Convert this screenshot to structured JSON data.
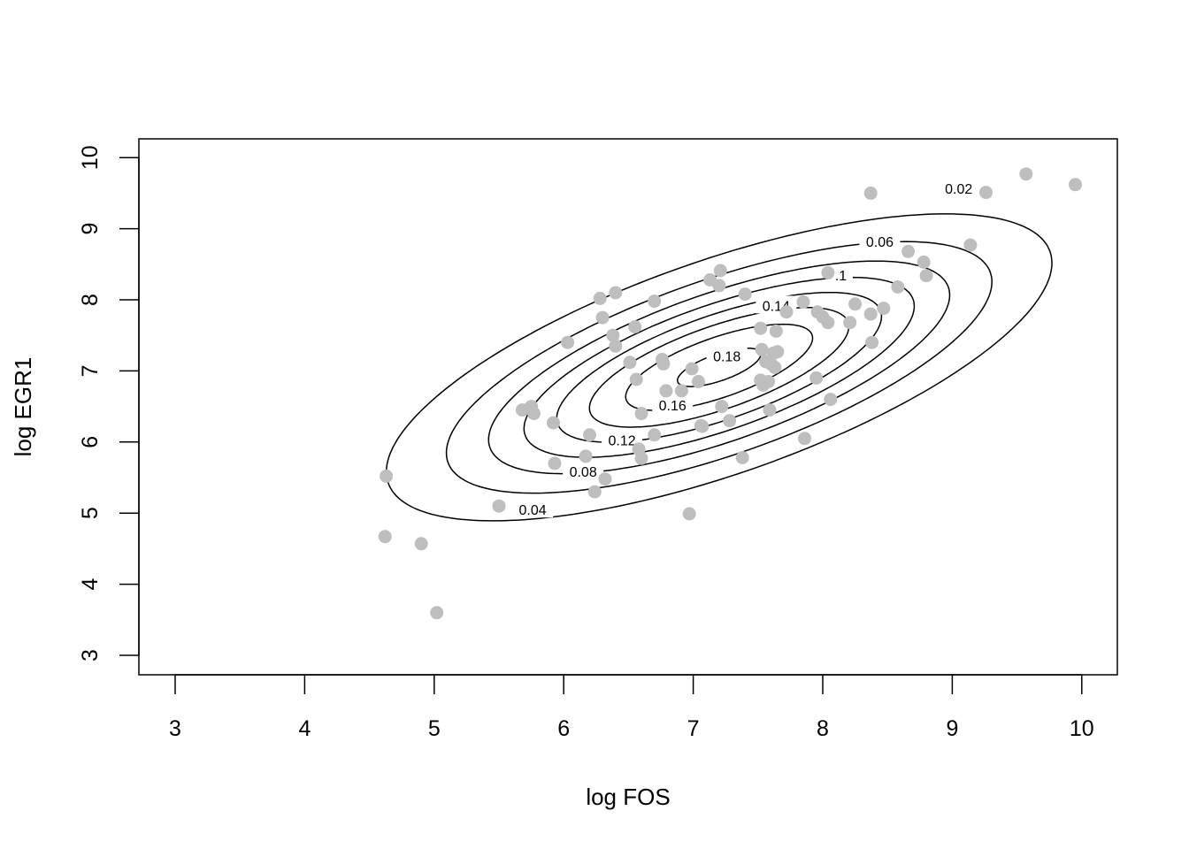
{
  "chart_data": {
    "type": "scatter",
    "title": "",
    "xlabel": "log FOS",
    "ylabel": "log EGR1",
    "xlim": [
      3,
      10
    ],
    "ylim": [
      3,
      10
    ],
    "x_ticks": [
      3,
      4,
      5,
      6,
      7,
      8,
      9,
      10
    ],
    "y_ticks": [
      3,
      4,
      5,
      6,
      7,
      8,
      9,
      10
    ],
    "grid": false,
    "point_color": "#bebebe",
    "contour_color": "#000000",
    "points": [
      [
        4.63,
        5.52
      ],
      [
        4.62,
        4.67
      ],
      [
        4.9,
        4.57
      ],
      [
        5.02,
        3.6
      ],
      [
        5.5,
        5.1
      ],
      [
        5.68,
        6.45
      ],
      [
        5.75,
        6.5
      ],
      [
        5.77,
        6.4
      ],
      [
        5.92,
        6.27
      ],
      [
        5.93,
        5.7
      ],
      [
        6.03,
        7.4
      ],
      [
        6.17,
        5.8
      ],
      [
        6.2,
        6.1
      ],
      [
        6.24,
        5.3
      ],
      [
        6.28,
        8.02
      ],
      [
        6.3,
        7.75
      ],
      [
        6.32,
        5.48
      ],
      [
        6.38,
        7.5
      ],
      [
        6.4,
        8.1
      ],
      [
        6.4,
        7.35
      ],
      [
        6.51,
        7.12
      ],
      [
        6.55,
        7.62
      ],
      [
        6.56,
        6.88
      ],
      [
        6.58,
        5.9
      ],
      [
        6.6,
        5.77
      ],
      [
        6.6,
        6.4
      ],
      [
        6.7,
        7.98
      ],
      [
        6.7,
        6.1
      ],
      [
        6.76,
        7.16
      ],
      [
        6.77,
        7.1
      ],
      [
        6.79,
        6.72
      ],
      [
        6.91,
        6.72
      ],
      [
        6.97,
        4.99
      ],
      [
        6.99,
        7.03
      ],
      [
        7.04,
        6.85
      ],
      [
        7.06,
        6.23
      ],
      [
        7.07,
        6.22
      ],
      [
        7.13,
        8.28
      ],
      [
        7.2,
        8.2
      ],
      [
        7.21,
        8.41
      ],
      [
        7.22,
        6.5
      ],
      [
        7.28,
        6.3
      ],
      [
        7.38,
        5.78
      ],
      [
        7.4,
        8.08
      ],
      [
        7.52,
        7.6
      ],
      [
        7.52,
        6.87
      ],
      [
        7.53,
        7.3
      ],
      [
        7.54,
        6.8
      ],
      [
        7.56,
        7.13
      ],
      [
        7.58,
        6.85
      ],
      [
        7.59,
        6.45
      ],
      [
        7.6,
        7.1
      ],
      [
        7.62,
        7.25
      ],
      [
        7.63,
        7.05
      ],
      [
        7.64,
        7.56
      ],
      [
        7.65,
        7.27
      ],
      [
        7.72,
        7.83
      ],
      [
        7.85,
        7.97
      ],
      [
        7.86,
        6.05
      ],
      [
        7.95,
        6.9
      ],
      [
        7.96,
        7.83
      ],
      [
        8.0,
        7.76
      ],
      [
        8.04,
        7.68
      ],
      [
        8.04,
        8.38
      ],
      [
        8.06,
        6.6
      ],
      [
        8.21,
        7.68
      ],
      [
        8.25,
        7.94
      ],
      [
        8.37,
        9.5
      ],
      [
        8.37,
        7.8
      ],
      [
        8.38,
        7.4
      ],
      [
        8.47,
        7.88
      ],
      [
        8.58,
        8.18
      ],
      [
        8.66,
        8.68
      ],
      [
        8.78,
        8.53
      ],
      [
        8.8,
        8.34
      ],
      [
        9.14,
        8.77
      ],
      [
        9.26,
        9.51
      ],
      [
        9.57,
        9.77
      ],
      [
        9.95,
        9.62
      ]
    ],
    "density": {
      "mean": [
        7.2,
        7.05
      ],
      "sd": [
        1.25,
        1.05
      ],
      "rho": 0.68
    },
    "contour_levels": [
      0.02,
      0.04,
      0.06,
      0.08,
      0.1,
      0.12,
      0.14,
      0.16,
      0.18
    ],
    "contour_labels": [
      {
        "level": 0.02,
        "text": "0.02",
        "x": 9.05,
        "y": 9.57
      },
      {
        "level": 0.06,
        "text": "0.06",
        "x": 8.44,
        "y": 8.82
      },
      {
        "level": 0.1,
        "text": ".1",
        "x": 8.14,
        "y": 8.35
      },
      {
        "level": 0.14,
        "text": "0.14",
        "x": 7.64,
        "y": 7.92
      },
      {
        "level": 0.18,
        "text": "0.18",
        "x": 7.26,
        "y": 7.21
      },
      {
        "level": 0.16,
        "text": "0.16",
        "x": 6.84,
        "y": 6.52
      },
      {
        "level": 0.12,
        "text": "0.12",
        "x": 6.45,
        "y": 6.03
      },
      {
        "level": 0.08,
        "text": "0.08",
        "x": 6.15,
        "y": 5.59
      },
      {
        "level": 0.04,
        "text": "0.04",
        "x": 5.76,
        "y": 5.05
      }
    ]
  }
}
